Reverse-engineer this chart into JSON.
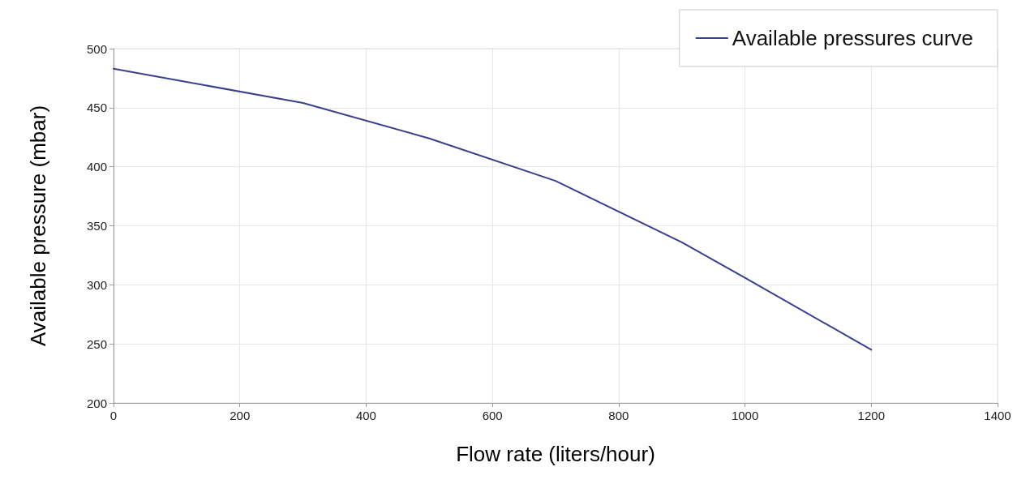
{
  "chart_data": {
    "type": "line",
    "xlabel": "Flow rate (liters/hour)",
    "ylabel": "Available pressure (mbar)",
    "x": [
      0,
      300,
      500,
      700,
      900,
      1000,
      1200
    ],
    "series": [
      {
        "name": "Available pressures curve",
        "color": "#3a3f8c",
        "values": [
          483,
          454,
          424,
          388,
          336,
          306,
          245
        ]
      }
    ],
    "xlim": [
      0,
      1400
    ],
    "xticks": [
      0,
      200,
      400,
      600,
      800,
      1000,
      1200,
      1400
    ],
    "ylim": [
      200,
      500
    ],
    "yticks": [
      200,
      250,
      300,
      350,
      400,
      450,
      500
    ],
    "grid": true,
    "legend": "top right",
    "marker": "none",
    "line_style": "solid"
  }
}
